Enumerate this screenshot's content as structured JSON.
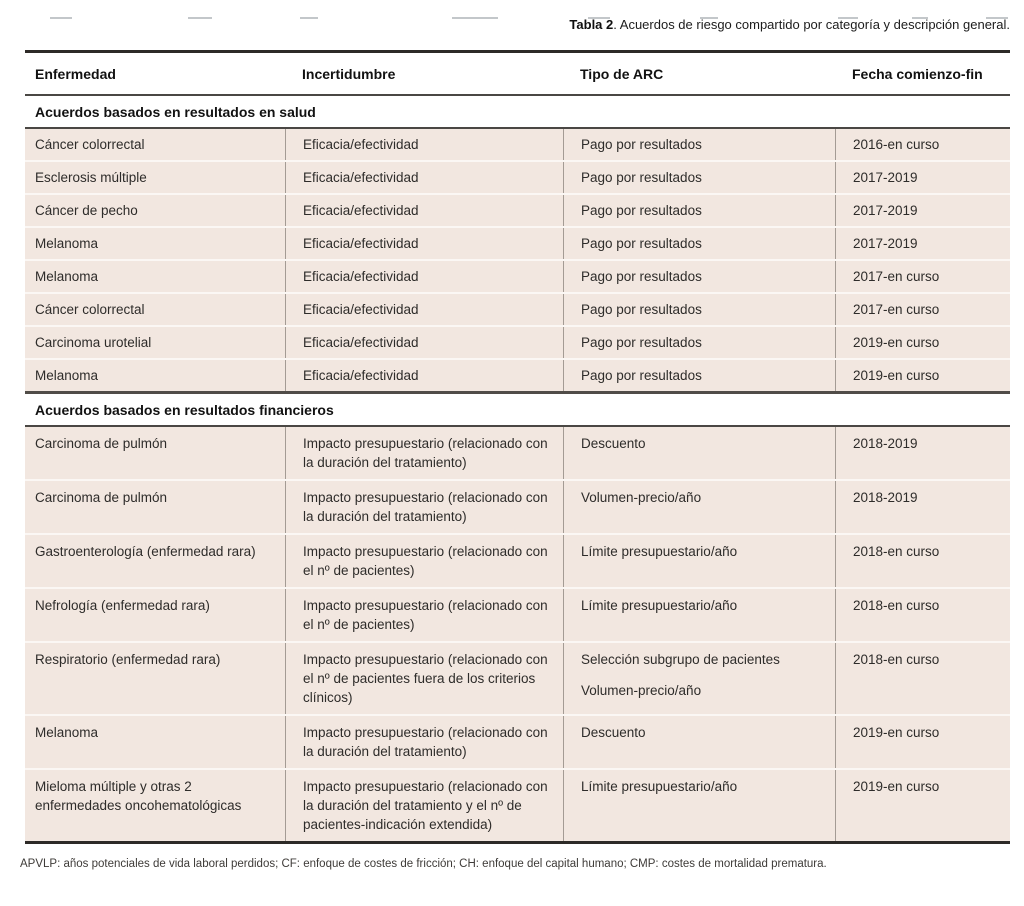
{
  "caption": {
    "label": "Tabla 2",
    "text": ". Acuerdos de riesgo compartido por categoría y descripción general."
  },
  "table": {
    "columns": [
      "Enfermedad",
      "Incertidumbre",
      "Tipo de ARC",
      "Fecha comienzo-fin"
    ],
    "sections": [
      {
        "header": "Acuerdos basados en resultados en salud",
        "rows": [
          {
            "enfermedad": "Cáncer colorrectal",
            "incertidumbre": "Eficacia/efectividad",
            "tipo": [
              "Pago por resultados"
            ],
            "fecha": "2016-en curso"
          },
          {
            "enfermedad": "Esclerosis múltiple",
            "incertidumbre": "Eficacia/efectividad",
            "tipo": [
              "Pago por resultados"
            ],
            "fecha": "2017-2019"
          },
          {
            "enfermedad": "Cáncer de pecho",
            "incertidumbre": "Eficacia/efectividad",
            "tipo": [
              "Pago por resultados"
            ],
            "fecha": "2017-2019"
          },
          {
            "enfermedad": "Melanoma",
            "incertidumbre": "Eficacia/efectividad",
            "tipo": [
              "Pago por resultados"
            ],
            "fecha": "2017-2019"
          },
          {
            "enfermedad": "Melanoma",
            "incertidumbre": "Eficacia/efectividad",
            "tipo": [
              "Pago por resultados"
            ],
            "fecha": "2017-en curso"
          },
          {
            "enfermedad": "Cáncer colorrectal",
            "incertidumbre": "Eficacia/efectividad",
            "tipo": [
              "Pago por resultados"
            ],
            "fecha": "2017-en curso"
          },
          {
            "enfermedad": "Carcinoma urotelial",
            "incertidumbre": "Eficacia/efectividad",
            "tipo": [
              "Pago por resultados"
            ],
            "fecha": "2019-en curso"
          },
          {
            "enfermedad": "Melanoma",
            "incertidumbre": "Eficacia/efectividad",
            "tipo": [
              "Pago por resultados"
            ],
            "fecha": "2019-en curso"
          }
        ]
      },
      {
        "header": "Acuerdos basados en resultados financieros",
        "rows": [
          {
            "enfermedad": "Carcinoma de pulmón",
            "incertidumbre": "Impacto presupuestario (relacionado con la duración del tratamiento)",
            "tipo": [
              "Descuento"
            ],
            "fecha": "2018-2019"
          },
          {
            "enfermedad": "Carcinoma de pulmón",
            "incertidumbre": "Impacto presupuestario (relacionado con la duración del tratamiento)",
            "tipo": [
              "Volumen-precio/año"
            ],
            "fecha": "2018-2019"
          },
          {
            "enfermedad": "Gastroenterología (enfermedad rara)",
            "incertidumbre": "Impacto presupuestario (relacionado con el nº de pacientes)",
            "tipo": [
              "Límite presupuestario/año"
            ],
            "fecha": "2018-en curso"
          },
          {
            "enfermedad": "Nefrología (enfermedad rara)",
            "incertidumbre": "Impacto presupuestario (relacionado con el nº de pacientes)",
            "tipo": [
              "Límite presupuestario/año"
            ],
            "fecha": "2018-en curso"
          },
          {
            "enfermedad": "Respiratorio (enfermedad rara)",
            "incertidumbre": "Impacto presupuestario (relacionado con el nº de pacientes fuera de los criterios clínicos)",
            "tipo": [
              "Selección subgrupo de pacientes",
              "Volumen-precio/año"
            ],
            "fecha": "2018-en curso"
          },
          {
            "enfermedad": "Melanoma",
            "incertidumbre": "Impacto presupuestario (relacionado con la duración del tratamiento)",
            "tipo": [
              "Descuento"
            ],
            "fecha": "2019-en curso"
          },
          {
            "enfermedad": "Mieloma múltiple y otras 2 enfermedades oncohematológicas",
            "incertidumbre": "Impacto presupuestario (relacionado con la duración del tratamiento y el nº de pacientes-indicación extendida)",
            "tipo": [
              "Límite presupuestario/año"
            ],
            "fecha": "2019-en curso"
          }
        ]
      }
    ]
  },
  "footnote": "APVLP: años potenciales de vida laboral perdidos; CF: enfoque de costes de fricción; CH: enfoque del capital humano; CMP: costes de mortalidad prematura.",
  "colors": {
    "row_bg": "#f2e7e0",
    "border_heavy": "#2d2a27",
    "border_medium": "#4a4744",
    "column_line": "#a49b94",
    "row_gap_line": "#fbf7f4",
    "text": "#2e2c2a"
  }
}
